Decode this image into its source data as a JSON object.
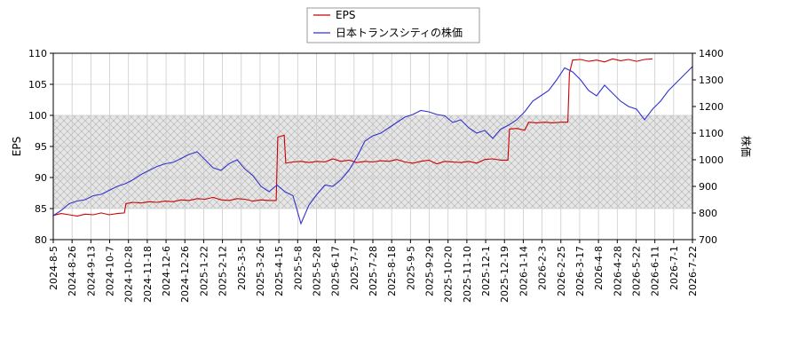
{
  "chart_data": {
    "type": "line",
    "legend_placement": "top-center",
    "grid": true,
    "shaded_band": {
      "axis": "left",
      "from": 85,
      "to": 100,
      "pattern": "crosshatch"
    },
    "x_tick_labels": [
      "2024-8-5",
      "2024-8-26",
      "2024-9-13",
      "2024-10-7",
      "2024-10-28",
      "2024-11-18",
      "2024-12-6",
      "2024-12-26",
      "2025-1-22",
      "2025-2-12",
      "2025-3-5",
      "2025-3-26",
      "2025-4-15",
      "2025-5-8",
      "2025-5-28",
      "2025-6-17",
      "2025-7-7",
      "2025-7-28",
      "2025-8-18",
      "2025-9-5",
      "2025-9-29",
      "2025-10-20",
      "2025-11-10",
      "2025-12-1",
      "2025-12-19",
      "2026-1-14",
      "2026-2-3",
      "2026-2-25",
      "2026-3-17",
      "2026-4-8",
      "2026-4-28",
      "2026-5-22",
      "2026-6-11",
      "2026-7-1",
      "2026-7-22"
    ],
    "y_left": {
      "label": "EPS",
      "lim": [
        80,
        110
      ],
      "ticks": [
        80,
        85,
        90,
        95,
        100,
        105,
        110
      ]
    },
    "y_right": {
      "label": "株価",
      "lim": [
        700,
        1400
      ],
      "ticks": [
        700,
        800,
        900,
        1000,
        1100,
        1200,
        1300,
        1400
      ]
    },
    "series": [
      {
        "name": "EPS",
        "axis": "left",
        "color": "#cc0000",
        "points": [
          [
            0,
            83.9
          ],
          [
            2,
            84.2
          ],
          [
            4,
            84.0
          ],
          [
            6,
            83.8
          ],
          [
            8,
            84.1
          ],
          [
            10,
            84.0
          ],
          [
            12,
            84.3
          ],
          [
            14,
            84.0
          ],
          [
            16,
            84.2
          ],
          [
            17.8,
            84.3
          ],
          [
            18.2,
            85.8
          ],
          [
            20,
            86.0
          ],
          [
            22,
            85.9
          ],
          [
            24,
            86.1
          ],
          [
            26,
            86.0
          ],
          [
            28,
            86.2
          ],
          [
            30,
            86.1
          ],
          [
            32,
            86.4
          ],
          [
            34,
            86.3
          ],
          [
            36,
            86.6
          ],
          [
            38,
            86.5
          ],
          [
            40,
            86.8
          ],
          [
            42,
            86.4
          ],
          [
            44,
            86.3
          ],
          [
            46,
            86.6
          ],
          [
            48,
            86.5
          ],
          [
            50,
            86.2
          ],
          [
            52,
            86.4
          ],
          [
            54,
            86.3
          ],
          [
            55.8,
            86.3
          ],
          [
            56.2,
            96.5
          ],
          [
            57.8,
            96.8
          ],
          [
            58.2,
            92.3
          ],
          [
            60,
            92.5
          ],
          [
            62,
            92.6
          ],
          [
            64,
            92.4
          ],
          [
            66,
            92.6
          ],
          [
            68,
            92.5
          ],
          [
            70,
            93.0
          ],
          [
            72,
            92.6
          ],
          [
            74,
            92.8
          ],
          [
            76,
            92.4
          ],
          [
            78,
            92.6
          ],
          [
            80,
            92.5
          ],
          [
            82,
            92.7
          ],
          [
            84,
            92.6
          ],
          [
            86,
            92.9
          ],
          [
            88,
            92.5
          ],
          [
            90,
            92.3
          ],
          [
            92,
            92.6
          ],
          [
            94,
            92.8
          ],
          [
            96,
            92.2
          ],
          [
            98,
            92.6
          ],
          [
            100,
            92.5
          ],
          [
            102,
            92.4
          ],
          [
            104,
            92.6
          ],
          [
            106,
            92.3
          ],
          [
            108,
            92.9
          ],
          [
            110,
            93.0
          ],
          [
            112,
            92.8
          ],
          [
            113.8,
            92.8
          ],
          [
            114.2,
            97.8
          ],
          [
            116,
            97.9
          ],
          [
            118,
            97.6
          ],
          [
            119,
            98.9
          ],
          [
            121,
            98.8
          ],
          [
            123,
            98.9
          ],
          [
            125,
            98.8
          ],
          [
            127,
            98.9
          ],
          [
            128.8,
            98.9
          ],
          [
            129.2,
            106.8
          ],
          [
            130,
            108.9
          ],
          [
            132,
            109.0
          ],
          [
            134,
            108.7
          ],
          [
            136,
            108.9
          ],
          [
            138,
            108.6
          ],
          [
            140,
            109.1
          ],
          [
            142,
            108.8
          ],
          [
            144,
            109.0
          ],
          [
            146,
            108.7
          ],
          [
            148,
            109.0
          ],
          [
            150,
            109.1
          ]
        ]
      },
      {
        "name": "日本トランスシティの株価",
        "axis": "right",
        "color": "#3333cc",
        "points": [
          [
            0,
            790
          ],
          [
            2,
            810
          ],
          [
            4,
            835
          ],
          [
            6,
            845
          ],
          [
            8,
            850
          ],
          [
            10,
            865
          ],
          [
            12,
            870
          ],
          [
            14,
            885
          ],
          [
            16,
            900
          ],
          [
            18,
            910
          ],
          [
            20,
            925
          ],
          [
            22,
            945
          ],
          [
            24,
            960
          ],
          [
            26,
            975
          ],
          [
            28,
            985
          ],
          [
            30,
            990
          ],
          [
            32,
            1005
          ],
          [
            34,
            1020
          ],
          [
            36,
            1030
          ],
          [
            38,
            1000
          ],
          [
            40,
            970
          ],
          [
            42,
            960
          ],
          [
            44,
            985
          ],
          [
            46,
            1000
          ],
          [
            48,
            965
          ],
          [
            50,
            940
          ],
          [
            52,
            900
          ],
          [
            54,
            880
          ],
          [
            56,
            905
          ],
          [
            58,
            880
          ],
          [
            60,
            865
          ],
          [
            62,
            760
          ],
          [
            64,
            830
          ],
          [
            66,
            870
          ],
          [
            68,
            905
          ],
          [
            70,
            900
          ],
          [
            72,
            925
          ],
          [
            74,
            960
          ],
          [
            76,
            1010
          ],
          [
            78,
            1070
          ],
          [
            80,
            1090
          ],
          [
            82,
            1100
          ],
          [
            84,
            1120
          ],
          [
            86,
            1140
          ],
          [
            88,
            1160
          ],
          [
            90,
            1170
          ],
          [
            92,
            1185
          ],
          [
            94,
            1180
          ],
          [
            96,
            1170
          ],
          [
            98,
            1165
          ],
          [
            100,
            1140
          ],
          [
            102,
            1150
          ],
          [
            104,
            1120
          ],
          [
            106,
            1100
          ],
          [
            108,
            1110
          ],
          [
            110,
            1080
          ],
          [
            112,
            1115
          ],
          [
            114,
            1130
          ],
          [
            116,
            1150
          ],
          [
            118,
            1180
          ],
          [
            120,
            1220
          ],
          [
            122,
            1240
          ],
          [
            124,
            1260
          ],
          [
            126,
            1300
          ],
          [
            128,
            1345
          ],
          [
            130,
            1330
          ],
          [
            132,
            1300
          ],
          [
            134,
            1260
          ],
          [
            136,
            1240
          ],
          [
            138,
            1280
          ],
          [
            140,
            1250
          ],
          [
            142,
            1220
          ],
          [
            144,
            1200
          ],
          [
            146,
            1190
          ],
          [
            148,
            1150
          ],
          [
            150,
            1190
          ],
          [
            152,
            1220
          ],
          [
            154,
            1260
          ],
          [
            156,
            1290
          ],
          [
            158,
            1320
          ],
          [
            160,
            1350
          ]
        ]
      }
    ],
    "legend": [
      "EPS",
      "日本トランスシティの株価"
    ]
  }
}
